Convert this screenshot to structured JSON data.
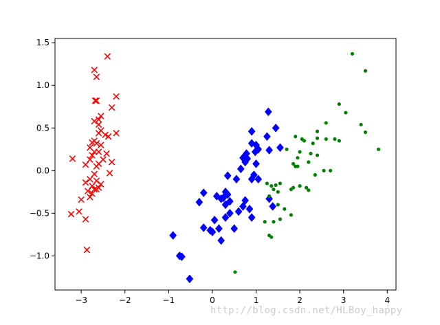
{
  "chart_data": {
    "type": "scatter",
    "title": "",
    "xlabel": "",
    "ylabel": "",
    "xlim": [
      -3.6,
      4.2
    ],
    "ylim": [
      -1.4,
      1.55
    ],
    "xticks": [
      -3,
      -2,
      -1,
      0,
      1,
      2,
      3,
      4
    ],
    "xtick_labels": [
      "−3",
      "−2",
      "−1",
      "0",
      "1",
      "2",
      "3",
      "4"
    ],
    "yticks": [
      -1.0,
      -0.5,
      0.0,
      0.5,
      1.0,
      1.5
    ],
    "ytick_labels": [
      "−1.0",
      "−0.5",
      "0.0",
      "0.5",
      "1.0",
      "1.5"
    ],
    "grid": false,
    "series": [
      {
        "marker": "x",
        "color": "#ff0000",
        "points": [
          [
            -2.4,
            1.34
          ],
          [
            -2.7,
            1.18
          ],
          [
            -2.65,
            1.1
          ],
          [
            -2.65,
            0.82
          ],
          [
            -2.68,
            0.82
          ],
          [
            -2.2,
            0.87
          ],
          [
            -2.3,
            0.74
          ],
          [
            -2.55,
            0.64
          ],
          [
            -2.6,
            0.6
          ],
          [
            -2.7,
            0.58
          ],
          [
            -2.6,
            0.54
          ],
          [
            -2.55,
            0.47
          ],
          [
            -2.6,
            0.44
          ],
          [
            -2.45,
            0.42
          ],
          [
            -2.2,
            0.44
          ],
          [
            -2.38,
            0.4
          ],
          [
            -2.7,
            0.35
          ],
          [
            -2.75,
            0.33
          ],
          [
            -2.65,
            0.32
          ],
          [
            -2.8,
            0.27
          ],
          [
            -2.7,
            0.22
          ],
          [
            -2.6,
            0.22
          ],
          [
            -2.42,
            0.2
          ],
          [
            -2.5,
            0.13
          ],
          [
            -2.8,
            0.13
          ],
          [
            -3.2,
            0.14
          ],
          [
            -2.3,
            0.1
          ],
          [
            -2.6,
            0.08
          ],
          [
            -2.9,
            0.07
          ],
          [
            -2.7,
            -0.04
          ],
          [
            -2.35,
            -0.03
          ],
          [
            -2.8,
            -0.1
          ],
          [
            -2.65,
            -0.12
          ],
          [
            -2.9,
            -0.14
          ],
          [
            -2.55,
            -0.16
          ],
          [
            -2.75,
            -0.18
          ],
          [
            -2.6,
            -0.2
          ],
          [
            -2.7,
            -0.22
          ],
          [
            -2.85,
            -0.24
          ],
          [
            -2.75,
            -0.27
          ],
          [
            -2.8,
            -0.31
          ],
          [
            -3.0,
            -0.34
          ],
          [
            -3.05,
            -0.48
          ],
          [
            -3.23,
            -0.51
          ],
          [
            -2.9,
            -0.57
          ],
          [
            -2.87,
            -0.93
          ],
          [
            -2.65,
            -0.22
          ],
          [
            -2.55,
            0.3
          ],
          [
            -2.65,
            0.05
          ],
          [
            -2.75,
            0.18
          ]
        ]
      },
      {
        "marker": "diamond",
        "color": "#0000ff",
        "points": [
          [
            1.28,
            0.69
          ],
          [
            1.45,
            0.5
          ],
          [
            1.25,
            0.4
          ],
          [
            0.9,
            0.46
          ],
          [
            1.55,
            0.27
          ],
          [
            1.0,
            0.3
          ],
          [
            1.05,
            0.25
          ],
          [
            0.9,
            0.32
          ],
          [
            0.78,
            0.2
          ],
          [
            0.7,
            0.15
          ],
          [
            0.75,
            0.1
          ],
          [
            0.8,
            0.14
          ],
          [
            0.98,
            0.22
          ],
          [
            1.3,
            0.24
          ],
          [
            1.0,
            0.08
          ],
          [
            0.65,
            0.02
          ],
          [
            0.95,
            -0.05
          ],
          [
            1.05,
            -0.1
          ],
          [
            0.9,
            -0.1
          ],
          [
            0.55,
            -0.1
          ],
          [
            0.35,
            -0.06
          ],
          [
            0.3,
            -0.25
          ],
          [
            0.25,
            -0.32
          ],
          [
            0.2,
            -0.33
          ],
          [
            0.35,
            -0.28
          ],
          [
            0.4,
            -0.36
          ],
          [
            0.3,
            -0.4
          ],
          [
            0.1,
            -0.3
          ],
          [
            -0.2,
            -0.26
          ],
          [
            -0.3,
            -0.37
          ],
          [
            0.75,
            -0.35
          ],
          [
            0.7,
            -0.42
          ],
          [
            0.6,
            -0.48
          ],
          [
            0.85,
            -0.45
          ],
          [
            1.3,
            -0.33
          ],
          [
            1.38,
            -0.42
          ],
          [
            0.9,
            -0.55
          ],
          [
            0.4,
            -0.5
          ],
          [
            0.3,
            -0.55
          ],
          [
            0.05,
            -0.58
          ],
          [
            -0.2,
            -0.67
          ],
          [
            -0.05,
            -0.7
          ],
          [
            0.0,
            -0.72
          ],
          [
            0.15,
            -0.68
          ],
          [
            0.5,
            -0.68
          ],
          [
            0.2,
            -0.82
          ],
          [
            -0.9,
            -0.76
          ],
          [
            -0.75,
            -1.0
          ],
          [
            -0.7,
            -1.01
          ],
          [
            -0.52,
            -1.27
          ]
        ]
      },
      {
        "marker": "dot",
        "color": "#008000",
        "points": [
          [
            3.2,
            1.37
          ],
          [
            3.5,
            1.17
          ],
          [
            2.9,
            0.78
          ],
          [
            3.05,
            0.68
          ],
          [
            3.4,
            0.54
          ],
          [
            3.5,
            0.45
          ],
          [
            2.6,
            0.56
          ],
          [
            2.4,
            0.46
          ],
          [
            2.8,
            0.37
          ],
          [
            2.9,
            0.35
          ],
          [
            2.6,
            0.37
          ],
          [
            2.4,
            0.38
          ],
          [
            2.3,
            0.32
          ],
          [
            2.1,
            0.35
          ],
          [
            1.9,
            0.4
          ],
          [
            2.05,
            0.37
          ],
          [
            1.7,
            0.25
          ],
          [
            2.0,
            0.22
          ],
          [
            1.95,
            0.15
          ],
          [
            2.25,
            0.2
          ],
          [
            2.4,
            0.18
          ],
          [
            2.2,
            0.1
          ],
          [
            1.85,
            0.08
          ],
          [
            1.95,
            0.05
          ],
          [
            1.9,
            0.05
          ],
          [
            2.55,
            0.0
          ],
          [
            2.35,
            -0.05
          ],
          [
            3.8,
            0.25
          ],
          [
            1.55,
            -0.15
          ],
          [
            1.45,
            -0.17
          ],
          [
            1.25,
            -0.15
          ],
          [
            1.35,
            -0.18
          ],
          [
            1.4,
            -0.22
          ],
          [
            1.3,
            -0.3
          ],
          [
            1.5,
            -0.4
          ],
          [
            1.65,
            -0.45
          ],
          [
            1.8,
            -0.52
          ],
          [
            1.55,
            -0.57
          ],
          [
            1.4,
            -0.6
          ],
          [
            1.2,
            -0.6
          ],
          [
            1.3,
            -0.76
          ],
          [
            1.35,
            -0.78
          ],
          [
            2.0,
            -0.18
          ],
          [
            2.15,
            -0.2
          ],
          [
            2.2,
            -0.23
          ],
          [
            1.8,
            -0.22
          ],
          [
            1.5,
            -0.25
          ],
          [
            1.85,
            -0.2
          ],
          [
            0.52,
            -1.19
          ],
          [
            2.7,
            0.0
          ]
        ]
      }
    ]
  },
  "watermark": "http://blog.csdn.net/HLBoy_happy"
}
